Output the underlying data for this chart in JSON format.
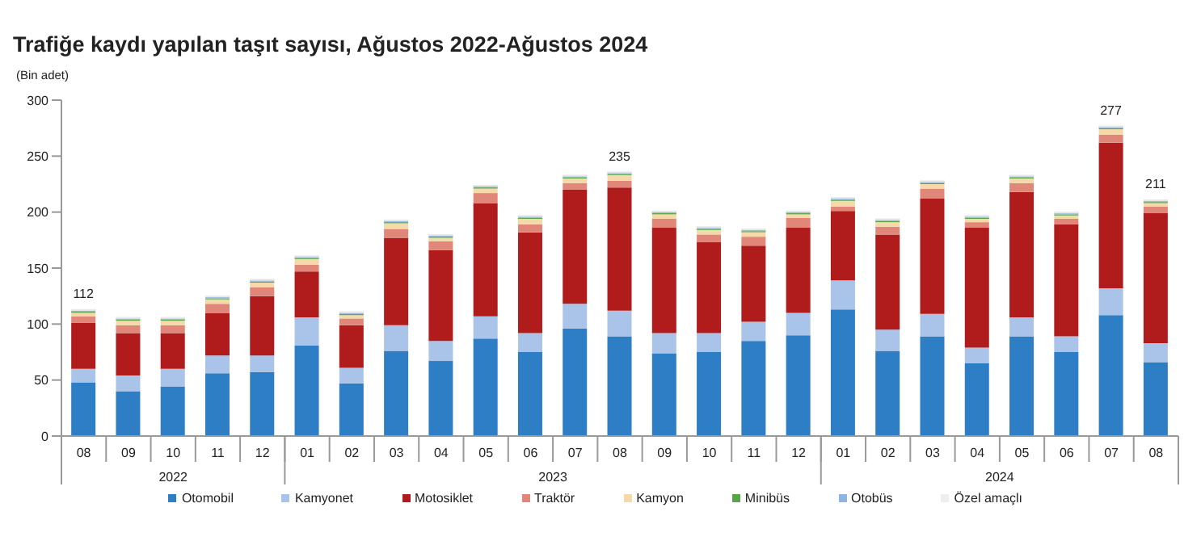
{
  "chart_data": {
    "type": "bar",
    "stacked": true,
    "title": "Trafiğe kaydı yapılan taşıt sayısı, Ağustos 2022-Ağustos 2024",
    "ylabel": "(Bin adet)",
    "categories": [
      "08",
      "09",
      "10",
      "11",
      "12",
      "01",
      "02",
      "03",
      "04",
      "05",
      "06",
      "07",
      "08",
      "09",
      "10",
      "11",
      "12",
      "01",
      "02",
      "03",
      "04",
      "05",
      "06",
      "07",
      "08"
    ],
    "annotations": [
      "2022",
      "2023",
      "2024"
    ],
    "series": [
      {
        "name": "Otomobil",
        "color": "#2e7ec6",
        "values": [
          48,
          40,
          44,
          56,
          57,
          81,
          47,
          76,
          67,
          87,
          75,
          96,
          89,
          74,
          75,
          85,
          90,
          113,
          76,
          89,
          65,
          89,
          75,
          108,
          66
        ]
      },
      {
        "name": "Kamyonet",
        "color": "#a9c4e8",
        "values": [
          12,
          14,
          16,
          16,
          15,
          25,
          14,
          23,
          18,
          20,
          17,
          22,
          23,
          18,
          17,
          17,
          20,
          26,
          19,
          20,
          14,
          17,
          14,
          24,
          17
        ]
      },
      {
        "name": "Motosiklet",
        "color": "#b01c1c",
        "values": [
          41,
          38,
          32,
          38,
          53,
          41,
          38,
          78,
          81,
          101,
          90,
          102,
          110,
          94,
          81,
          68,
          76,
          62,
          85,
          103,
          107,
          112,
          100,
          130,
          116
        ]
      },
      {
        "name": "Traktör",
        "color": "#e0877a",
        "values": [
          6,
          7,
          7,
          8,
          8,
          6,
          6,
          8,
          8,
          9,
          7,
          6,
          6,
          8,
          7,
          8,
          9,
          4,
          7,
          9,
          5,
          8,
          5,
          7,
          6
        ]
      },
      {
        "name": "Kamyon",
        "color": "#f6d9a8",
        "values": [
          3,
          4,
          4,
          4,
          4,
          5,
          3,
          5,
          3,
          4,
          5,
          4,
          5,
          4,
          4,
          4,
          3,
          5,
          4,
          4,
          3,
          4,
          3,
          5,
          3
        ]
      },
      {
        "name": "Minibüs",
        "color": "#5aa54a",
        "values": [
          1,
          1,
          1,
          1,
          1,
          1,
          1,
          1,
          1,
          1,
          1,
          1,
          1,
          1,
          1,
          1,
          1,
          1,
          1,
          1,
          1,
          1,
          1,
          1,
          1
        ]
      },
      {
        "name": "Otobüs",
        "color": "#8eb4e3",
        "values": [
          1,
          1,
          1,
          1,
          1,
          1,
          1,
          1,
          1,
          1,
          1,
          1,
          1,
          1,
          1,
          1,
          1,
          1,
          1,
          1,
          1,
          1,
          1,
          1,
          1
        ]
      },
      {
        "name": "Özel amaçlı",
        "color": "#eeeeee",
        "values": [
          1,
          1,
          1,
          1,
          1,
          1,
          1,
          1,
          1,
          1,
          1,
          1,
          1,
          1,
          1,
          1,
          1,
          1,
          1,
          1,
          1,
          1,
          1,
          1,
          1
        ]
      }
    ],
    "totals": [
      "112",
      null,
      null,
      null,
      null,
      null,
      null,
      null,
      null,
      null,
      null,
      null,
      "235",
      null,
      null,
      null,
      null,
      null,
      null,
      null,
      null,
      null,
      null,
      "277",
      "211"
    ],
    "ylim": [
      0,
      300
    ],
    "yticks": [
      0,
      50,
      100,
      150,
      200,
      250,
      300
    ],
    "grid": false,
    "legend": "bottom"
  }
}
